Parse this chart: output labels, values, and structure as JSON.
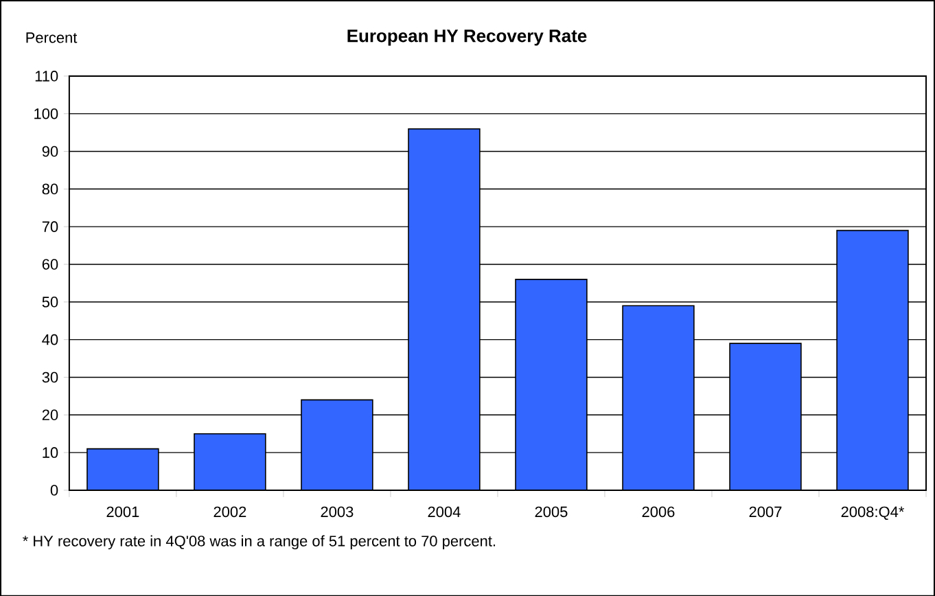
{
  "chart_data": {
    "type": "bar",
    "title": "European HY Recovery Rate",
    "ylabel": "Percent",
    "categories": [
      "2001",
      "2002",
      "2003",
      "2004",
      "2005",
      "2006",
      "2007",
      "2008:Q4*"
    ],
    "values": [
      11,
      15,
      24,
      96,
      56,
      49,
      39,
      69
    ],
    "color": "#3366ff",
    "ylim": [
      0,
      110
    ],
    "yticks": [
      0,
      10,
      20,
      30,
      40,
      50,
      60,
      70,
      80,
      90,
      100,
      110
    ],
    "grid": "y",
    "annotations": [
      "* HY recovery rate in 4Q'08 was in a range of 51 percent to 70 percent."
    ]
  }
}
